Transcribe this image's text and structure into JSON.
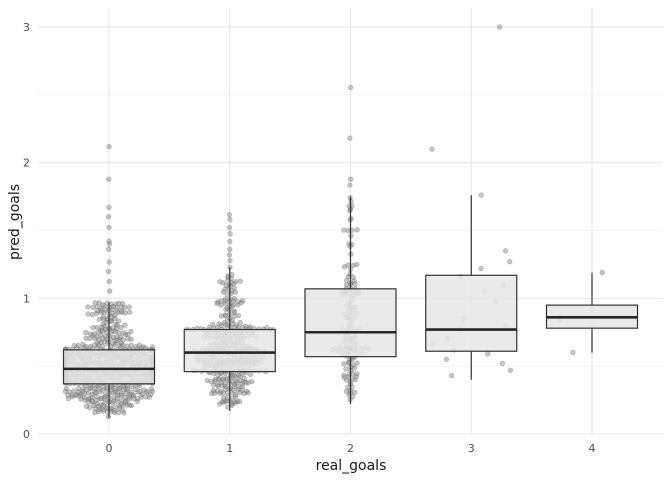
{
  "chart_data": {
    "type": "boxplot",
    "xlabel": "real_goals",
    "ylabel": "pred_goals",
    "ylim": [
      0,
      3
    ],
    "y_ticks": [
      "0",
      "1",
      "2",
      "3"
    ],
    "categories": [
      "0",
      "1",
      "2",
      "3",
      "4"
    ],
    "boxes": [
      {
        "category": "0",
        "n": 600,
        "min": 0.12,
        "q1": 0.37,
        "median": 0.48,
        "q3": 0.62,
        "whisker_low": 0.12,
        "whisker_high": 0.97,
        "outliers": [
          1.05,
          1.12,
          1.2,
          1.27,
          1.36,
          1.4,
          1.42,
          1.52,
          1.6,
          1.67,
          1.88,
          2.12
        ],
        "seed": 11
      },
      {
        "category": "1",
        "n": 360,
        "min": 0.17,
        "q1": 0.46,
        "median": 0.6,
        "q3": 0.77,
        "whisker_low": 0.17,
        "whisker_high": 1.23,
        "outliers": [
          1.28,
          1.32,
          1.36,
          1.42,
          1.48,
          1.52,
          1.58,
          1.62
        ],
        "seed": 23
      },
      {
        "category": "2",
        "n": 140,
        "min": 0.22,
        "q1": 0.57,
        "median": 0.75,
        "q3": 1.07,
        "whisker_low": 0.22,
        "whisker_high": 1.75,
        "outliers": [
          1.83,
          1.88,
          2.18,
          2.55
        ],
        "seed": 37
      },
      {
        "category": "3",
        "n": 22,
        "min": 0.4,
        "q1": 0.61,
        "median": 0.77,
        "q3": 1.17,
        "whisker_low": 0.4,
        "whisker_high": 1.76,
        "outliers": [
          2.1,
          3.0
        ],
        "seed": 41
      },
      {
        "category": "4",
        "n": 4,
        "min": 0.6,
        "q1": 0.78,
        "median": 0.86,
        "q3": 0.95,
        "whisker_low": 0.6,
        "whisker_high": 1.19,
        "outliers": [],
        "seed": 53
      }
    ],
    "jitter_points": [
      [],
      [],
      [],
      [
        0.43,
        0.47,
        0.52,
        0.55,
        0.59,
        0.62,
        0.66,
        0.7,
        0.77,
        0.8,
        0.85,
        0.98,
        1.05,
        1.1,
        1.16,
        1.22,
        1.27,
        1.35,
        1.76
      ],
      [
        0.6,
        0.84,
        0.87,
        1.19
      ]
    ]
  }
}
